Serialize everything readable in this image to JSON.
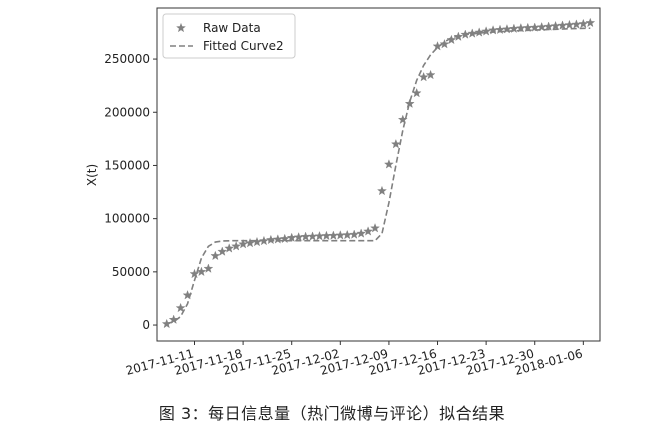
{
  "caption": "图 3：每日信息量（热门微博与评论）拟合结果",
  "chart_data": {
    "type": "line",
    "title": "",
    "xlabel": "",
    "ylabel": "X(t)",
    "x_tick_labels": [
      "2017-11-11",
      "2017-11-18",
      "2017-11-25",
      "2017-12-02",
      "2017-12-09",
      "2017-12-16",
      "2017-12-23",
      "2017-12-30",
      "2018-01-06"
    ],
    "x_range": [
      "2017-11-07",
      "2018-01-07"
    ],
    "y_ticks": [
      0,
      50000,
      100000,
      150000,
      200000,
      250000
    ],
    "y_tick_labels": [
      "0",
      "50000",
      "100000",
      "150000",
      "200000",
      "250000"
    ],
    "ylim": [
      -15000,
      298000
    ],
    "legend_placement": "top-left",
    "grid": false,
    "series": [
      {
        "name": "Raw Data",
        "style": "markers",
        "marker": "star",
        "color": "#808080",
        "x": [
          "2017-11-07",
          "2017-11-08",
          "2017-11-09",
          "2017-11-10",
          "2017-11-11",
          "2017-11-12",
          "2017-11-13",
          "2017-11-14",
          "2017-11-15",
          "2017-11-16",
          "2017-11-17",
          "2017-11-18",
          "2017-11-19",
          "2017-11-20",
          "2017-11-21",
          "2017-11-22",
          "2017-11-23",
          "2017-11-24",
          "2017-11-25",
          "2017-11-26",
          "2017-11-27",
          "2017-11-28",
          "2017-11-29",
          "2017-11-30",
          "2017-12-01",
          "2017-12-02",
          "2017-12-03",
          "2017-12-04",
          "2017-12-05",
          "2017-12-06",
          "2017-12-07",
          "2017-12-08",
          "2017-12-09",
          "2017-12-10",
          "2017-12-11",
          "2017-12-12",
          "2017-12-13",
          "2017-12-14",
          "2017-12-15",
          "2017-12-16",
          "2017-12-17",
          "2017-12-18",
          "2017-12-19",
          "2017-12-20",
          "2017-12-21",
          "2017-12-22",
          "2017-12-23",
          "2017-12-24",
          "2017-12-25",
          "2017-12-26",
          "2017-12-27",
          "2017-12-28",
          "2017-12-29",
          "2017-12-30",
          "2017-12-31",
          "2018-01-01",
          "2018-01-02",
          "2018-01-03",
          "2018-01-04",
          "2018-01-05",
          "2018-01-06",
          "2018-01-07"
        ],
        "y": [
          1000,
          5000,
          16000,
          28000,
          48000,
          50000,
          53000,
          65000,
          69000,
          72000,
          74000,
          76000,
          77000,
          78000,
          79000,
          80000,
          80500,
          81000,
          82000,
          82500,
          83000,
          83200,
          83500,
          83800,
          84000,
          84300,
          84600,
          85000,
          86000,
          88000,
          91000,
          126000,
          151000,
          170000,
          193000,
          208000,
          218000,
          233000,
          235000,
          262000,
          264000,
          268000,
          271000,
          273000,
          274000,
          275000,
          276000,
          277000,
          277500,
          278000,
          278500,
          279000,
          279300,
          279600,
          280000,
          280500,
          281000,
          281500,
          282000,
          282500,
          283000,
          284000
        ]
      },
      {
        "name": "Fitted Curve2",
        "style": "dashed",
        "color": "#808080",
        "x": [
          "2017-11-07",
          "2017-11-08",
          "2017-11-09",
          "2017-11-10",
          "2017-11-11",
          "2017-11-12",
          "2017-11-13",
          "2017-11-14",
          "2017-11-15",
          "2017-11-16",
          "2017-11-17",
          "2017-11-19",
          "2017-11-22",
          "2017-11-26",
          "2017-11-30",
          "2017-12-04",
          "2017-12-07",
          "2017-12-08",
          "2017-12-09",
          "2017-12-10",
          "2017-12-11",
          "2017-12-12",
          "2017-12-13",
          "2017-12-14",
          "2017-12-15",
          "2017-12-16",
          "2017-12-17",
          "2017-12-18",
          "2017-12-20",
          "2017-12-23",
          "2017-12-27",
          "2017-12-31",
          "2018-01-04",
          "2018-01-07"
        ],
        "y": [
          1500,
          3000,
          8000,
          20000,
          42000,
          63000,
          74000,
          78000,
          79000,
          79200,
          79300,
          79300,
          79300,
          79300,
          79300,
          79300,
          79300,
          86000,
          115000,
          150000,
          183000,
          210000,
          230000,
          244000,
          254000,
          261000,
          266000,
          270000,
          273000,
          275000,
          276500,
          277500,
          278500,
          279000
        ]
      }
    ]
  }
}
